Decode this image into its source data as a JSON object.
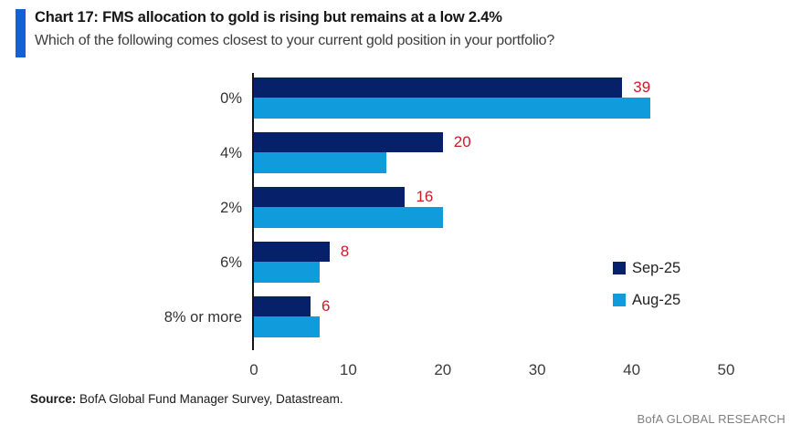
{
  "header": {
    "title": "Chart 17: FMS allocation to gold is rising but remains at a low 2.4%",
    "subtitle": "Which of the following comes closest to your current gold position in your portfolio?",
    "accent_color": "#1660d6"
  },
  "chart_data": {
    "type": "bar",
    "orientation": "horizontal",
    "title": "Chart 17: FMS allocation to gold is rising but remains at a low 2.4%",
    "subtitle": "Which of the following comes closest to your current gold position in your portfolio?",
    "categories": [
      "0%",
      "4%",
      "2%",
      "6%",
      "8% or more"
    ],
    "series": [
      {
        "name": "Sep-25",
        "color": "#062169",
        "values": [
          39,
          20,
          16,
          8,
          6
        ],
        "show_labels": true,
        "label_color": "#c22026"
      },
      {
        "name": "Aug-25",
        "color": "#109cdc",
        "values": [
          42,
          14,
          20,
          7,
          7
        ],
        "show_labels": false
      }
    ],
    "xlim": [
      0,
      50
    ],
    "xticks": [
      0,
      10,
      20,
      30,
      40,
      50
    ],
    "legend_position": "right",
    "grid": false
  },
  "footer": {
    "source_label": "Source:",
    "source_text": " BofA Global Fund Manager Survey, Datastream.",
    "brand": "BofA GLOBAL RESEARCH"
  }
}
